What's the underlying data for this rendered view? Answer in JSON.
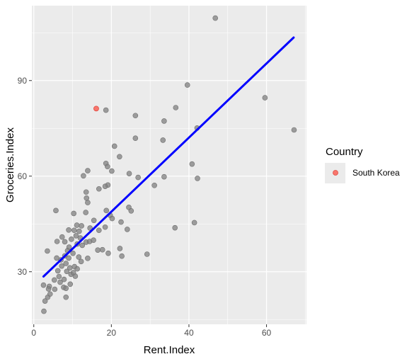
{
  "chart_data": {
    "type": "scatter",
    "xlabel": "Rent.Index",
    "ylabel": "Groceries.Index",
    "xlim": [
      -0.5,
      70.3
    ],
    "ylim": [
      13.5,
      113.5
    ],
    "x_ticks": [
      0,
      20,
      40,
      60
    ],
    "y_ticks": [
      30,
      60,
      90
    ],
    "grid": true,
    "background": "#ebebeb",
    "colors": {
      "points": "#808080",
      "highlight": "#f8766d",
      "trend_line": "#0000ff"
    },
    "legend": {
      "title": "Country",
      "position": "right",
      "entries": [
        "South Korea"
      ]
    },
    "trend_line": {
      "x": [
        2.5,
        67
      ],
      "y": [
        28.5,
        103.5
      ]
    },
    "highlight": [
      {
        "country": "South Korea",
        "x": 16.1,
        "y": 81.2
      }
    ],
    "points": [
      [
        46.8,
        109.6
      ],
      [
        59.6,
        84.6
      ],
      [
        67.1,
        74.5
      ],
      [
        39.6,
        88.6
      ],
      [
        36.6,
        81.5
      ],
      [
        33.6,
        77.3
      ],
      [
        42.1,
        75.1
      ],
      [
        33.3,
        71.3
      ],
      [
        26.2,
        79.0
      ],
      [
        26.2,
        71.9
      ],
      [
        18.6,
        80.7
      ],
      [
        20.8,
        69.4
      ],
      [
        22.1,
        66.1
      ],
      [
        18.6,
        64.0
      ],
      [
        19.0,
        63.0
      ],
      [
        20.1,
        61.6
      ],
      [
        24.6,
        60.8
      ],
      [
        26.9,
        59.6
      ],
      [
        33.6,
        59.8
      ],
      [
        40.8,
        63.8
      ],
      [
        42.2,
        59.3
      ],
      [
        31.1,
        57.1
      ],
      [
        19.1,
        57.2
      ],
      [
        18.4,
        56.8
      ],
      [
        16.8,
        56.0
      ],
      [
        13.5,
        55.0
      ],
      [
        13.6,
        53.1
      ],
      [
        13.9,
        51.7
      ],
      [
        12.8,
        60.1
      ],
      [
        13.9,
        61.7
      ],
      [
        15.5,
        46.1
      ],
      [
        13.4,
        48.6
      ],
      [
        5.7,
        49.2
      ],
      [
        10.3,
        48.3
      ],
      [
        18.7,
        49.2
      ],
      [
        19.7,
        47.7
      ],
      [
        20.2,
        46.7
      ],
      [
        24.5,
        50.2
      ],
      [
        25.1,
        49.1
      ],
      [
        22.5,
        45.6
      ],
      [
        24.1,
        43.3
      ],
      [
        18.4,
        44.0
      ],
      [
        14.5,
        43.7
      ],
      [
        16.8,
        43.0
      ],
      [
        11.7,
        42.7
      ],
      [
        10.4,
        43.0
      ],
      [
        9.0,
        43.1
      ],
      [
        7.3,
        40.9
      ],
      [
        6.0,
        39.5
      ],
      [
        8.0,
        39.4
      ],
      [
        9.1,
        37.7
      ],
      [
        11.2,
        38.7
      ],
      [
        12.5,
        38.3
      ],
      [
        13.5,
        39.3
      ],
      [
        14.4,
        39.5
      ],
      [
        15.4,
        39.9
      ],
      [
        16.5,
        36.8
      ],
      [
        17.7,
        36.9
      ],
      [
        19.2,
        35.8
      ],
      [
        22.2,
        37.3
      ],
      [
        22.7,
        34.9
      ],
      [
        29.2,
        35.5
      ],
      [
        36.4,
        43.8
      ],
      [
        41.4,
        45.4
      ],
      [
        3.5,
        36.5
      ],
      [
        5.9,
        34.3
      ],
      [
        7.0,
        33.7
      ],
      [
        8.0,
        35.0
      ],
      [
        9.0,
        34.3
      ],
      [
        10.1,
        35.8
      ],
      [
        11.6,
        34.6
      ],
      [
        12.2,
        33.2
      ],
      [
        13.9,
        34.2
      ],
      [
        7.2,
        31.8
      ],
      [
        8.3,
        32.6
      ],
      [
        9.3,
        31.2
      ],
      [
        10.5,
        31.6
      ],
      [
        11.2,
        30.9
      ],
      [
        6.2,
        30.3
      ],
      [
        8.5,
        30.1
      ],
      [
        9.6,
        29.2
      ],
      [
        10.7,
        28.6
      ],
      [
        5.3,
        27.4
      ],
      [
        6.8,
        26.7
      ],
      [
        7.8,
        27.6
      ],
      [
        9.4,
        26.1
      ],
      [
        4.0,
        25.4
      ],
      [
        5.4,
        24.5
      ],
      [
        2.5,
        25.8
      ],
      [
        3.8,
        24.6
      ],
      [
        7.7,
        25.1
      ],
      [
        8.3,
        24.8
      ],
      [
        3.6,
        22.0
      ],
      [
        2.9,
        20.8
      ],
      [
        4.2,
        23.0
      ],
      [
        8.3,
        22.0
      ],
      [
        2.6,
        17.6
      ],
      [
        10.9,
        41.3
      ],
      [
        12.0,
        40.6
      ],
      [
        9.7,
        40.2
      ],
      [
        8.7,
        36.6
      ],
      [
        10.2,
        29.7
      ],
      [
        6.5,
        28.5
      ],
      [
        12.3,
        44.4
      ],
      [
        11.1,
        44.6
      ]
    ]
  }
}
